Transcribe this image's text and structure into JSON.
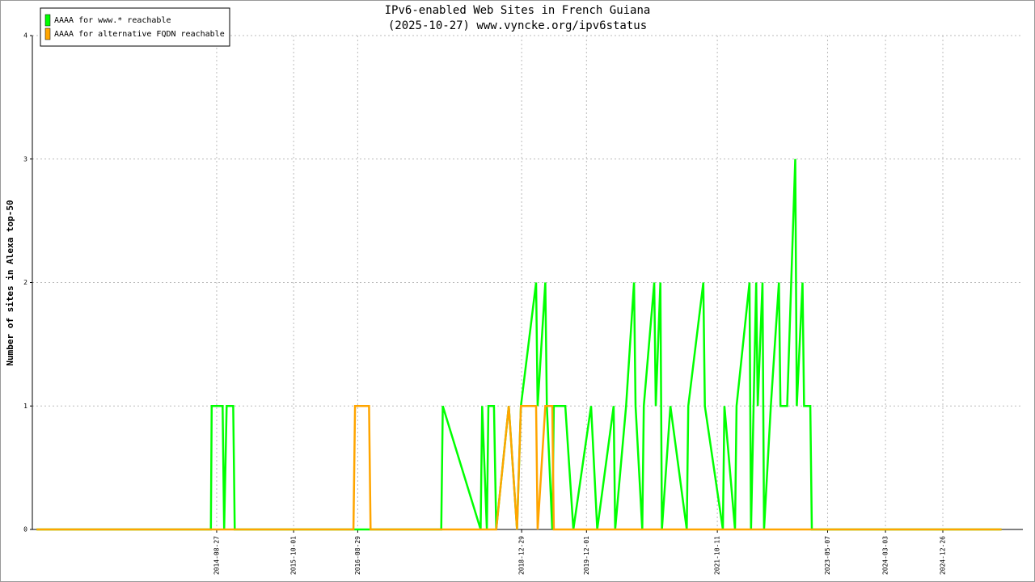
{
  "chart_data": {
    "type": "line",
    "title": "IPv6-enabled Web Sites in French Guiana",
    "subtitle": "(2025-10-27) www.vyncke.org/ipv6status",
    "y_label": "Number of sites in Alexa top-50",
    "x": [
      "2012-02-03",
      "2014-07-28",
      "2014-08-01",
      "2014-09-27",
      "2014-10-05",
      "2014-10-18",
      "2014-11-21",
      "2014-11-29",
      "2016-08-07",
      "2016-08-15",
      "2016-10-27",
      "2016-11-04",
      "2017-11-06",
      "2017-11-14",
      "2018-05-30",
      "2018-06-07",
      "2018-07-01",
      "2018-07-09",
      "2018-08-07",
      "2018-08-19",
      "2018-10-23",
      "2018-12-05",
      "2018-12-25",
      "2019-03-14",
      "2019-03-22",
      "2019-05-01",
      "2019-05-09",
      "2019-06-06",
      "2019-06-14",
      "2019-08-13",
      "2019-09-24",
      "2019-12-25",
      "2020-01-26",
      "2020-04-20",
      "2020-04-28",
      "2020-06-24",
      "2020-08-04",
      "2020-08-12",
      "2020-09-16",
      "2020-09-24",
      "2020-11-17",
      "2020-11-25",
      "2020-12-19",
      "2020-12-27",
      "2021-02-09",
      "2021-05-05",
      "2021-05-13",
      "2021-07-30",
      "2021-08-07",
      "2021-11-09",
      "2021-11-17",
      "2022-01-11",
      "2022-01-19",
      "2022-03-27",
      "2022-04-04",
      "2022-05-01",
      "2022-05-09",
      "2022-06-03",
      "2022-06-11",
      "2022-07-16",
      "2022-08-27",
      "2022-09-04",
      "2022-10-09",
      "2022-11-20",
      "2022-11-28",
      "2022-12-28",
      "2023-01-05",
      "2023-02-06",
      "2023-02-14",
      "2025-10-27"
    ],
    "series": [
      {
        "name": "AAAA for www.* reachable",
        "color": "#00ff00",
        "values": [
          0,
          0,
          1,
          1,
          0,
          1,
          1,
          0,
          0,
          0,
          0,
          0,
          0,
          1,
          0,
          1,
          0,
          1,
          1,
          0,
          1,
          0,
          1,
          2,
          1,
          2,
          1,
          0,
          1,
          1,
          0,
          1,
          0,
          1,
          0,
          1,
          2,
          1,
          0,
          1,
          2,
          1,
          2,
          0,
          1,
          0,
          1,
          2,
          1,
          0,
          1,
          0,
          1,
          2,
          0,
          2,
          1,
          2,
          0,
          1,
          2,
          1,
          1,
          3,
          1,
          2,
          1,
          1,
          0,
          0
        ]
      },
      {
        "name": "AAAA for alternative FQDN reachable",
        "color": "#ffa500",
        "values": [
          0,
          0,
          0,
          0,
          0,
          0,
          0,
          0,
          0,
          1,
          1,
          0,
          0,
          0,
          0,
          0,
          0,
          0,
          0,
          0,
          1,
          0,
          1,
          1,
          0,
          1,
          1,
          1,
          0,
          0,
          0,
          0,
          0,
          0,
          0,
          0,
          0,
          0,
          0,
          0,
          0,
          0,
          0,
          0,
          0,
          0,
          0,
          0,
          0,
          0,
          0,
          0,
          0,
          0,
          0,
          0,
          0,
          0,
          0,
          0,
          0,
          0,
          0,
          0,
          0,
          0,
          0,
          0,
          0,
          0
        ]
      }
    ],
    "xlim": [
      "2012-01-12",
      "2026-02-15"
    ],
    "xticks": [
      "2014-08-27",
      "2015-10-01",
      "2016-08-29",
      "2018-12-29",
      "2019-12-01",
      "2021-10-11",
      "2023-05-07",
      "2024-03-03",
      "2024-12-26"
    ],
    "ylim": [
      0,
      4
    ],
    "yticks": [
      0,
      1,
      2,
      3,
      4
    ],
    "grid": true,
    "legend": "top-left"
  }
}
